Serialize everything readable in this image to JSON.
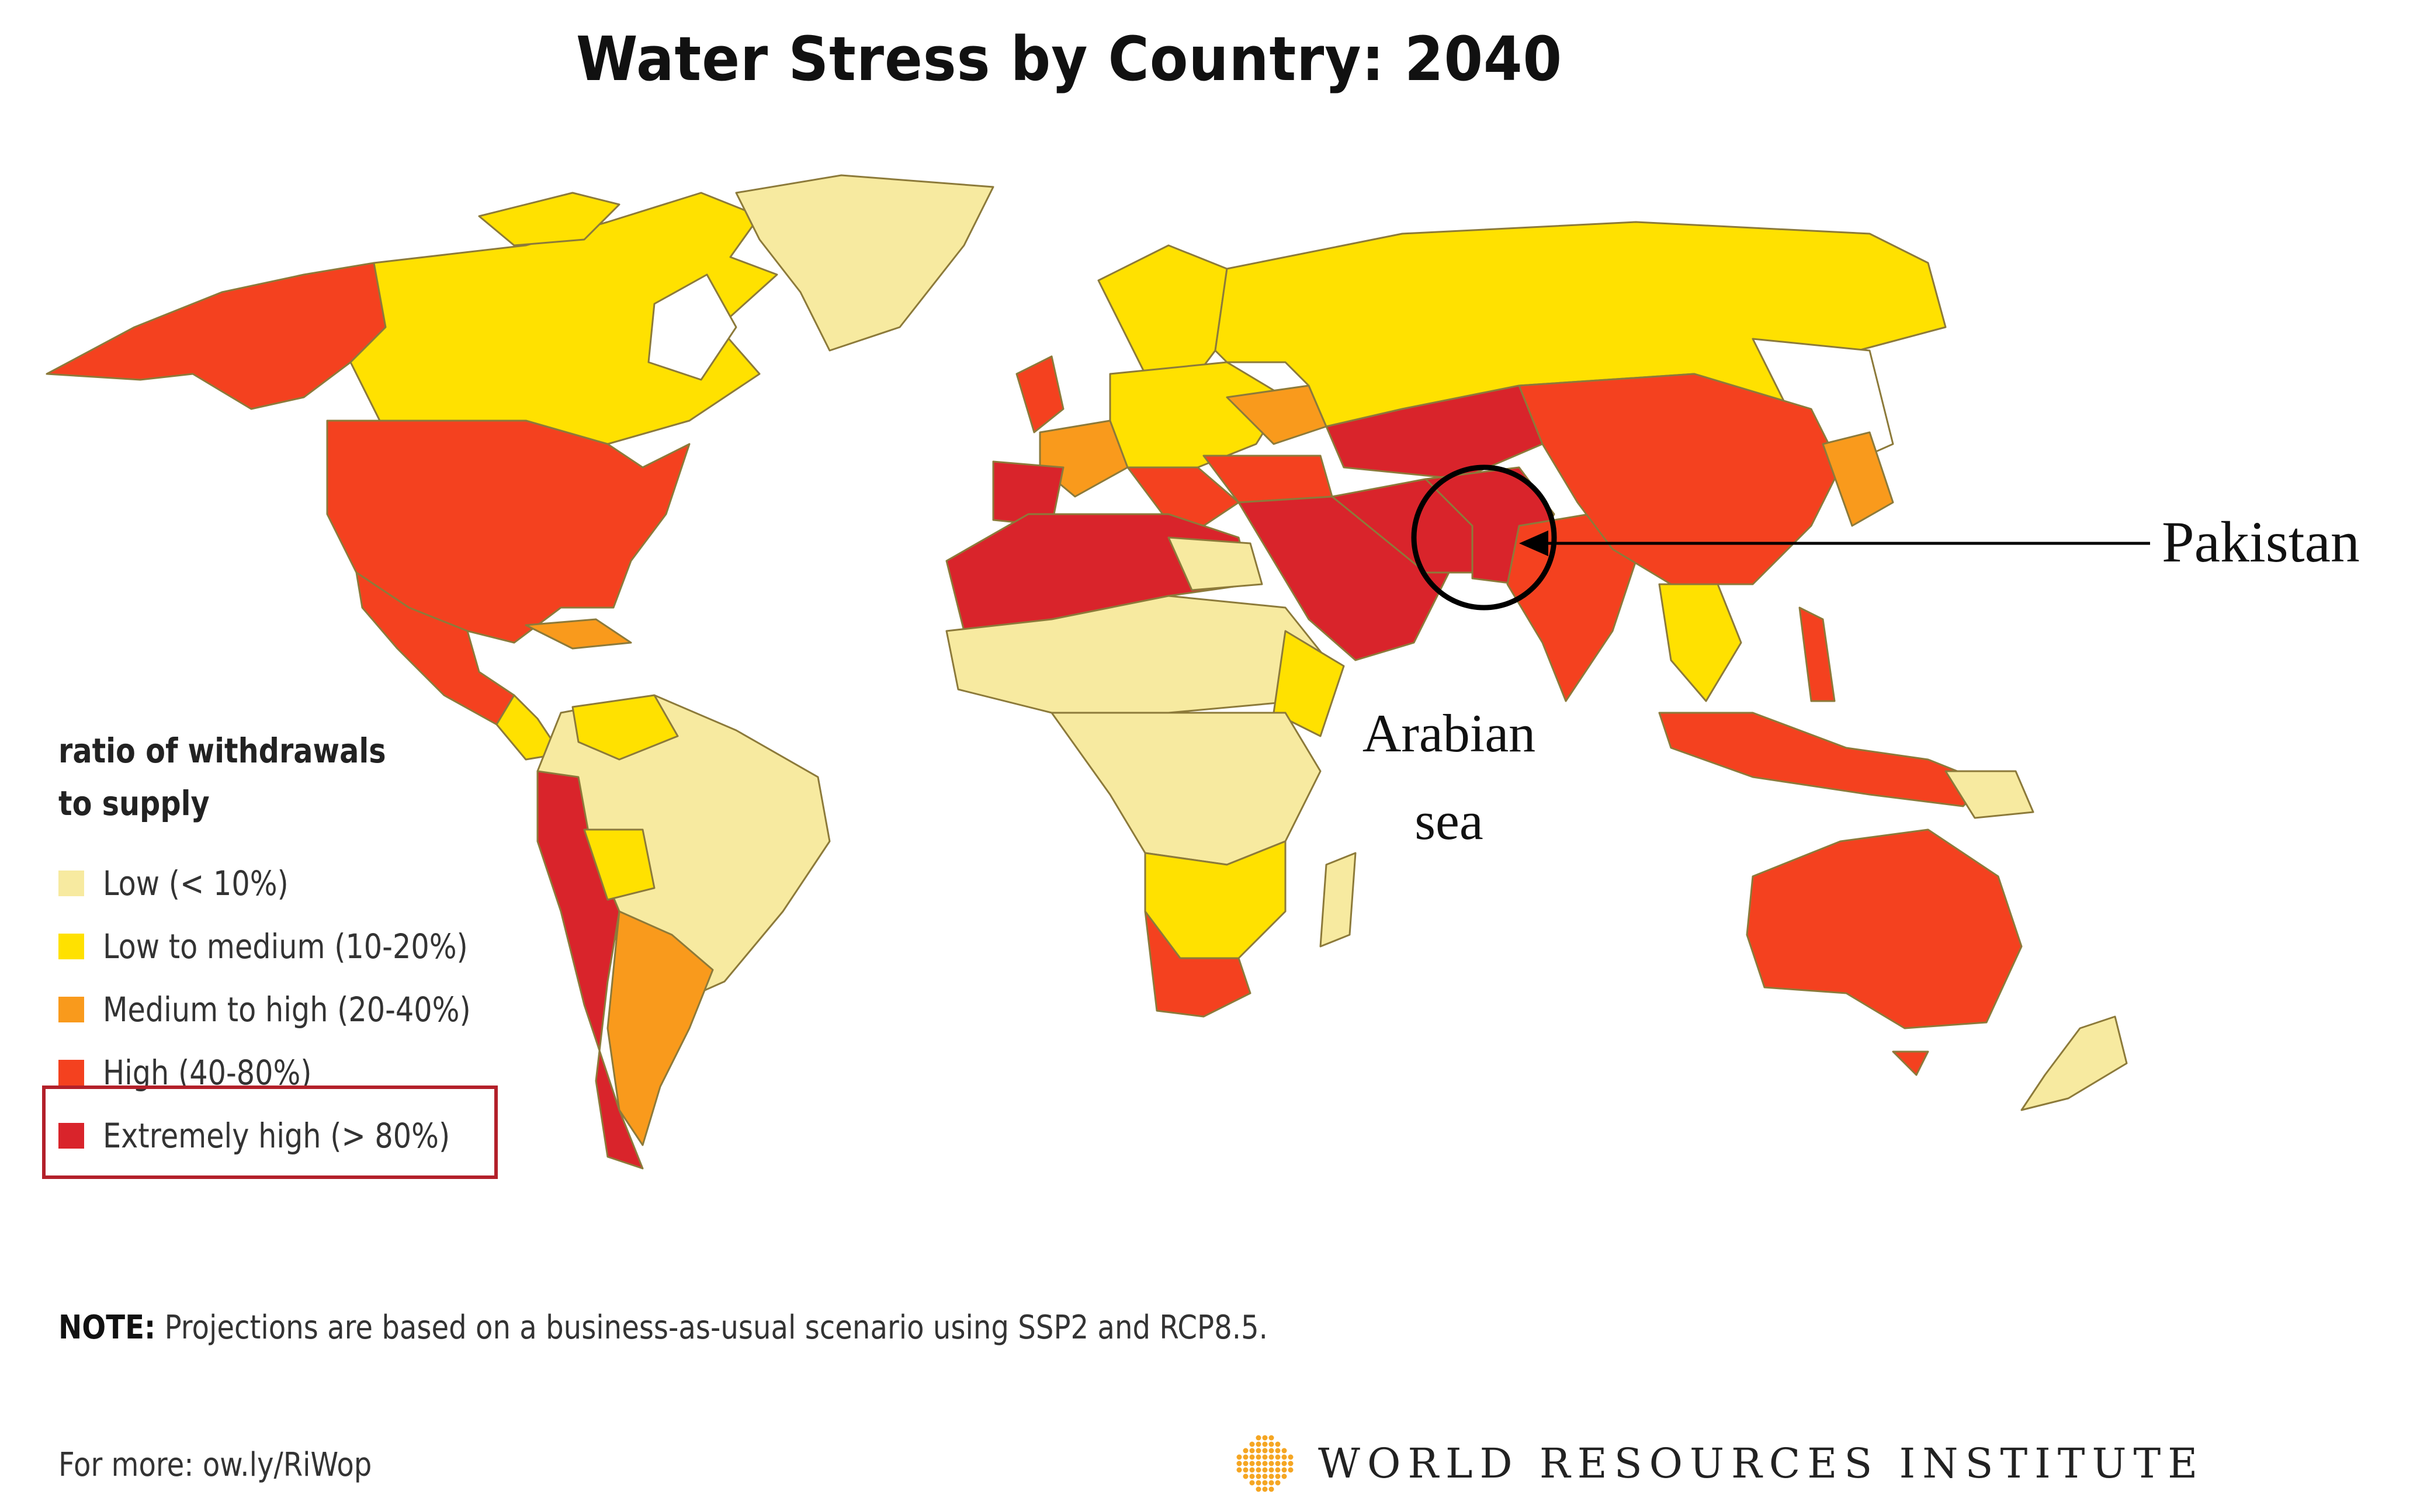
{
  "title": "Water Stress by Country: 2040",
  "legend": {
    "heading_line1": "ratio of withdrawals",
    "heading_line2": "to supply",
    "items": [
      {
        "label": "Low (< 10%)",
        "color": "#f7eaa0"
      },
      {
        "label": "Low to medium (10-20%)",
        "color": "#ffe100"
      },
      {
        "label": "Medium to high  (20-40%)",
        "color": "#f99a1c"
      },
      {
        "label": "High (40-80%)",
        "color": "#f4411f"
      },
      {
        "label": "Extremely high (> 80%)",
        "color": "#d9242b"
      }
    ],
    "highlighted_item": "Extremely high (> 80%)",
    "highlight_color": "#b3202a"
  },
  "annotations": {
    "pakistan": "Pakistan",
    "arabian_line1": "Arabian",
    "arabian_line2": "sea"
  },
  "note": {
    "prefix": "NOTE:",
    "text": "Projections are based on a business-as-usual scenario using SSP2 and RCP8.5."
  },
  "more": "For more: ow.ly/RiWop",
  "source": {
    "name": "WORLD RESOURCES INSTITUTE",
    "logo_icon": "wri-logo-icon",
    "logo_color": "#f5a623"
  },
  "map": {
    "ocean_color": "#ffffff",
    "border_color": "#8c7a3a"
  }
}
